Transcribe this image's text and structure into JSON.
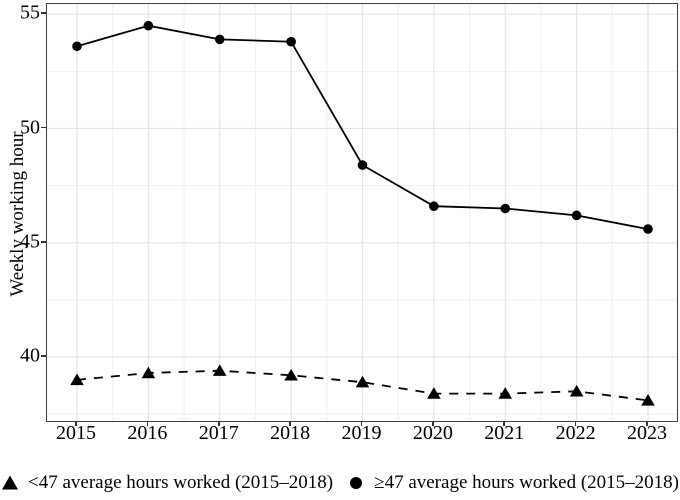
{
  "chart_data": {
    "type": "line",
    "title": "",
    "xlabel": "",
    "ylabel": "Weekly working hour",
    "x": [
      2015,
      2016,
      2017,
      2018,
      2019,
      2020,
      2021,
      2022,
      2023
    ],
    "series": [
      {
        "name": "<47 average hours worked (2015–2018)",
        "marker": "triangle",
        "line_style": "dashed",
        "values": [
          39.0,
          39.3,
          39.4,
          39.2,
          38.9,
          38.4,
          38.4,
          38.5,
          38.1
        ]
      },
      {
        "name": "≥47 average hours worked (2015–2018)",
        "marker": "circle",
        "line_style": "solid",
        "values": [
          53.6,
          54.5,
          53.9,
          53.8,
          48.4,
          46.6,
          46.5,
          46.2,
          45.6
        ]
      }
    ],
    "ylim": [
      37.2,
      55.45
    ],
    "yticks": [
      40,
      45,
      50,
      55
    ],
    "yticks_minor": [
      37.5,
      42.5,
      47.5,
      52.5
    ],
    "grid": true,
    "legend_position": "bottom",
    "colors": {
      "series": "#000000",
      "grid_major": "#e4e4e4",
      "grid_minor": "#f1f1f1",
      "panel_border": "#404040",
      "tick": "#333333",
      "background": "#ffffff",
      "text": "#000000"
    }
  }
}
